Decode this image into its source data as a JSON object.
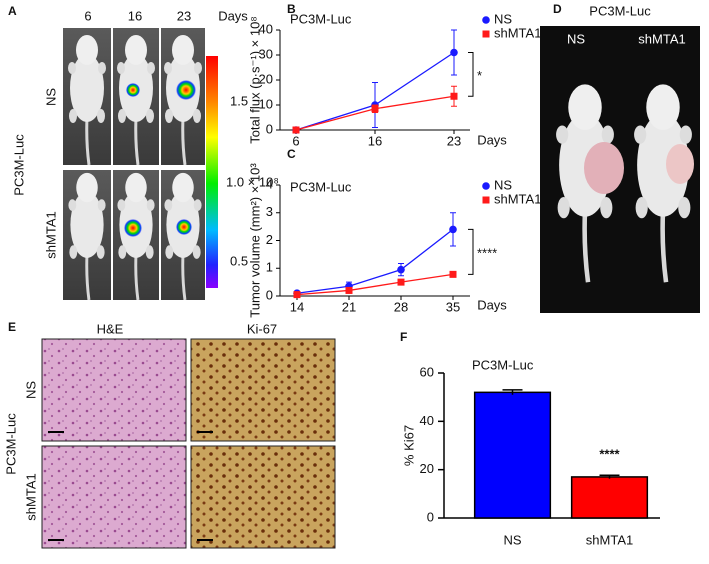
{
  "chart_data": [
    {
      "type": "line",
      "panel": "B",
      "annotation": "PC3M-Luc",
      "y_label": "Total flux (p·s⁻¹) × 10⁸",
      "x_label": "Days",
      "categories": [
        "6",
        "16",
        "23"
      ],
      "ylim": [
        0,
        40
      ],
      "yticks": [
        0,
        10,
        20,
        30,
        40
      ],
      "legend": "upper right",
      "significance": "*",
      "series": [
        {
          "name": "NS",
          "color": "#1a1aff",
          "marker": "circle",
          "values": [
            0,
            10,
            31
          ],
          "errors": [
            0,
            9,
            9
          ]
        },
        {
          "name": "shMTA1",
          "color": "#ff1a1a",
          "marker": "square",
          "values": [
            0,
            8.5,
            13.5
          ],
          "errors": [
            0,
            1.5,
            4
          ]
        }
      ]
    },
    {
      "type": "line",
      "panel": "C",
      "annotation": "PC3M-Luc",
      "y_label": "Tumor volume (mm²) × 10³",
      "x_label": "Days",
      "categories": [
        "14",
        "21",
        "28",
        "35"
      ],
      "ylim": [
        0,
        4
      ],
      "yticks": [
        0,
        1,
        2,
        3,
        4
      ],
      "legend": "upper right",
      "significance": "****",
      "series": [
        {
          "name": "NS",
          "color": "#1a1aff",
          "marker": "circle",
          "values": [
            0.1,
            0.35,
            0.95,
            2.4
          ],
          "errors": [
            0.05,
            0.15,
            0.22,
            0.6
          ]
        },
        {
          "name": "shMTA1",
          "color": "#ff1a1a",
          "marker": "square",
          "values": [
            0.05,
            0.2,
            0.5,
            0.78
          ],
          "errors": [
            0.02,
            0.05,
            0.06,
            0.05
          ]
        }
      ]
    },
    {
      "type": "bar",
      "panel": "F",
      "title": "PC3M-Luc",
      "y_label": "% Ki67",
      "categories": [
        "NS",
        "shMTA1"
      ],
      "values": [
        52,
        17
      ],
      "errors": [
        1,
        0.7
      ],
      "colors": [
        "#0000ff",
        "#ff0000"
      ],
      "ylim": [
        0,
        60
      ],
      "yticks": [
        0,
        20,
        40,
        60
      ],
      "significance": "****"
    }
  ],
  "panels": {
    "A": {
      "label": "A",
      "days": [
        "6",
        "16",
        "23"
      ],
      "days_label": "Days",
      "rows": [
        "NS",
        "shMTA1"
      ],
      "group": "PC3M-Luc",
      "colorbar": [
        "1.5",
        "1.0 × 10⁸",
        "0.5"
      ]
    },
    "D": {
      "label": "D",
      "title": "PC3M-Luc",
      "groups": [
        "NS",
        "shMTA1"
      ]
    },
    "E": {
      "label": "E",
      "columns": [
        "H&E",
        "Ki-67"
      ],
      "rows": [
        "NS",
        "shMTA1"
      ],
      "group": "PC3M-Luc"
    }
  }
}
